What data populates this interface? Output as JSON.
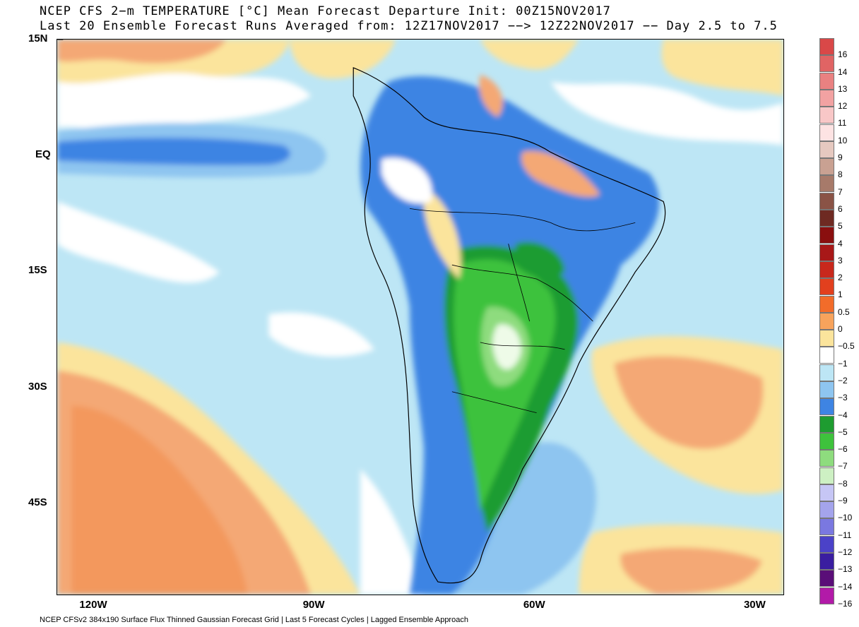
{
  "title_line1": "NCEP CFS 2−m TEMPERATURE [°C] Mean Forecast Departure Init: 00Z15NOV2017",
  "title_line2": "Last 20 Ensemble Forecast Runs Averaged from: 12Z17NOV2017 −−> 12Z22NOV2017 −− Day 2.5 to 7.5",
  "latitudes": [
    {
      "label": "15N",
      "lat": 15
    },
    {
      "label": "EQ",
      "lat": 0
    },
    {
      "label": "15S",
      "lat": -15
    },
    {
      "label": "30S",
      "lat": -30
    },
    {
      "label": "45S",
      "lat": -45
    }
  ],
  "longitudes": [
    {
      "label": "120W",
      "lon": -120
    },
    {
      "label": "90W",
      "lon": -90
    },
    {
      "label": "60W",
      "lon": -60
    },
    {
      "label": "30W",
      "lon": -30
    }
  ],
  "footer": "NCEP CFSv2 384x190 Surface Flux Thinned Gaussian Forecast Grid | Last 5 Forecast Cycles | Lagged Ensemble Approach",
  "colorbar": [
    {
      "label": "16",
      "color": "#d94848"
    },
    {
      "label": "14",
      "color": "#e06464"
    },
    {
      "label": "13",
      "color": "#e98181"
    },
    {
      "label": "12",
      "color": "#f2a2a2"
    },
    {
      "label": "11",
      "color": "#f8c7c7"
    },
    {
      "label": "10",
      "color": "#fde3e3"
    },
    {
      "label": "9",
      "color": "#e6c9c0"
    },
    {
      "label": "8",
      "color": "#c9a192"
    },
    {
      "label": "7",
      "color": "#a77a6a"
    },
    {
      "label": "6",
      "color": "#8a5346"
    },
    {
      "label": "5",
      "color": "#6e2a22"
    },
    {
      "label": "4",
      "color": "#8a0f0f"
    },
    {
      "label": "3",
      "color": "#a81818"
    },
    {
      "label": "2",
      "color": "#c8281c"
    },
    {
      "label": "1",
      "color": "#e2401e"
    },
    {
      "label": "0.5",
      "color": "#f26c2a"
    },
    {
      "label": "0",
      "color": "#f7a35c"
    },
    {
      "label": "−0.5",
      "color": "#fbe49c"
    },
    {
      "label": "−1",
      "color": "#ffffff"
    },
    {
      "label": "−2",
      "color": "#bde6f5"
    },
    {
      "label": "−3",
      "color": "#8ec5f0"
    },
    {
      "label": "−4",
      "color": "#3e84e3"
    },
    {
      "label": "−5",
      "color": "#1e9c30"
    },
    {
      "label": "−6",
      "color": "#3ec23c"
    },
    {
      "label": "−7",
      "color": "#8edc7e"
    },
    {
      "label": "−8",
      "color": "#cdf0c3"
    },
    {
      "label": "−9",
      "color": "#c6c6f5"
    },
    {
      "label": "−10",
      "color": "#a4a4ec"
    },
    {
      "label": "−11",
      "color": "#7a78e0"
    },
    {
      "label": "−12",
      "color": "#4b42c8"
    },
    {
      "label": "−13",
      "color": "#3a1ea0"
    },
    {
      "label": "−14",
      "color": "#5a0e78"
    },
    {
      "label": "−16",
      "color": "#b21aa8"
    }
  ],
  "colors": {
    "ocean_warm": "#f4a874",
    "ocean_warm2": "#fbe49c",
    "neutral": "#ffffff",
    "cool1": "#bde6f5",
    "cool2": "#8ec5f0",
    "cool3": "#3e84e3",
    "cold_green1": "#1e9c30",
    "cold_green2": "#3ec23c",
    "cold_green3": "#8edc7e",
    "pale": "#eefbe8",
    "heat_orange": "#f28a4a"
  }
}
